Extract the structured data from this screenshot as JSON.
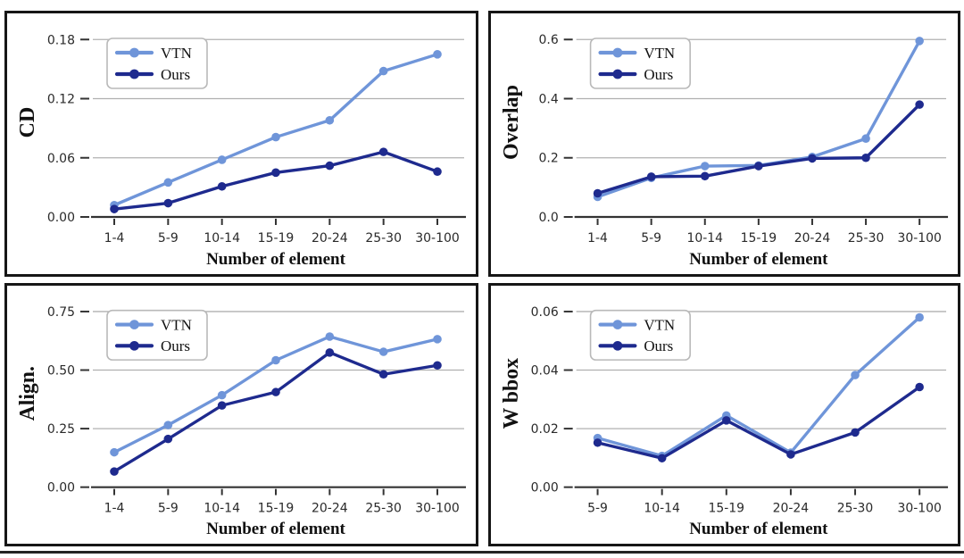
{
  "figure": {
    "xlabel": "Number of element",
    "legend_labels": [
      "VTN",
      "Ours"
    ],
    "colors": {
      "vtn": "#6f95d9",
      "ours": "#1e2a8e",
      "grid": "#b0b0b0",
      "axis": "#333333",
      "legend_border": "#b9b9b9"
    }
  },
  "chart_data": [
    {
      "type": "line",
      "ylabel": "CD",
      "xlabel": "Number of element",
      "categories": [
        "1-4",
        "5-9",
        "10-14",
        "15-19",
        "20-24",
        "25-30",
        "30-100"
      ],
      "yticks": [
        0.0,
        0.06,
        0.12,
        0.18
      ],
      "ytick_labels": [
        "0.00",
        "0.06",
        "0.12",
        "0.18"
      ],
      "ylim": [
        0,
        0.192
      ],
      "grid": true,
      "legend_position": "upper-left",
      "series": [
        {
          "name": "VTN",
          "color": "#6f95d9",
          "values": [
            0.012,
            0.035,
            0.058,
            0.081,
            0.098,
            0.148,
            0.165
          ]
        },
        {
          "name": "Ours",
          "color": "#1e2a8e",
          "values": [
            0.008,
            0.014,
            0.031,
            0.045,
            0.052,
            0.066,
            0.046
          ]
        }
      ]
    },
    {
      "type": "line",
      "ylabel": "Overlap",
      "xlabel": "Number of element",
      "categories": [
        "1-4",
        "5-9",
        "10-14",
        "15-19",
        "20-24",
        "25-30",
        "30-100"
      ],
      "yticks": [
        0.0,
        0.2,
        0.4,
        0.6
      ],
      "ytick_labels": [
        "0.0",
        "0.2",
        "0.4",
        "0.6"
      ],
      "ylim": [
        0,
        0.64
      ],
      "grid": true,
      "legend_position": "upper-left",
      "series": [
        {
          "name": "VTN",
          "color": "#6f95d9",
          "values": [
            0.068,
            0.132,
            0.172,
            0.174,
            0.203,
            0.265,
            0.595
          ]
        },
        {
          "name": "Ours",
          "color": "#1e2a8e",
          "values": [
            0.08,
            0.136,
            0.138,
            0.172,
            0.198,
            0.2,
            0.38
          ]
        }
      ]
    },
    {
      "type": "line",
      "ylabel": "Align.",
      "xlabel": "Number of element",
      "categories": [
        "1-4",
        "5-9",
        "10-14",
        "15-19",
        "20-24",
        "25-30",
        "30-100"
      ],
      "yticks": [
        0.0,
        0.25,
        0.5,
        0.75
      ],
      "ytick_labels": [
        "0.00",
        "0.25",
        "0.50",
        "0.75"
      ],
      "ylim": [
        0,
        0.8
      ],
      "grid": true,
      "legend_position": "upper-left",
      "series": [
        {
          "name": "VTN",
          "color": "#6f95d9",
          "values": [
            0.149,
            0.265,
            0.393,
            0.542,
            0.643,
            0.578,
            0.632
          ]
        },
        {
          "name": "Ours",
          "color": "#1e2a8e",
          "values": [
            0.067,
            0.206,
            0.349,
            0.406,
            0.575,
            0.482,
            0.52
          ]
        }
      ]
    },
    {
      "type": "line",
      "ylabel": "W bbox",
      "xlabel": "Number of element",
      "categories": [
        "5-9",
        "10-14",
        "15-19",
        "20-24",
        "25-30",
        "30-100"
      ],
      "yticks": [
        0.0,
        0.02,
        0.04,
        0.06
      ],
      "ytick_labels": [
        "0.00",
        "0.02",
        "0.04",
        "0.06"
      ],
      "ylim": [
        0,
        0.064
      ],
      "grid": true,
      "legend_position": "upper-left",
      "series": [
        {
          "name": "VTN",
          "color": "#6f95d9",
          "values": [
            0.0168,
            0.0107,
            0.0245,
            0.0118,
            0.0383,
            0.058
          ]
        },
        {
          "name": "Ours",
          "color": "#1e2a8e",
          "values": [
            0.0152,
            0.0099,
            0.0228,
            0.0112,
            0.0187,
            0.0342
          ]
        }
      ]
    }
  ]
}
